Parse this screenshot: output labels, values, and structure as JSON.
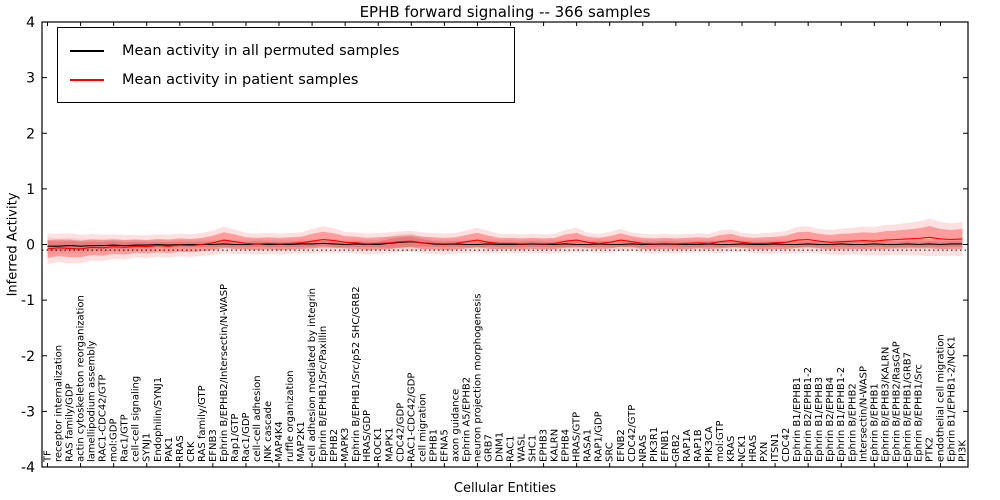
{
  "chart_data": {
    "type": "line",
    "title": "EPHB forward signaling -- 366 samples",
    "xlabel": "Cellular Entities",
    "ylabel": "Inferred Activity",
    "ylim": [
      -4,
      4
    ],
    "yticks": [
      -4,
      -3,
      -2,
      -1,
      0,
      1,
      2,
      3,
      4
    ],
    "grid": false,
    "legend_position": "upper left",
    "reference_line": -0.1,
    "categories": [
      "TF",
      "receptor internalization",
      "RAS family/GDP",
      "actin cytoskeleton reorganization",
      "lamellipodium assembly",
      "RAC1-CDC42/GTP",
      "mol:GDP",
      "Rac1/GTP",
      "cell-cell signaling",
      "SYNJ1",
      "Endophilin/SYNJ1",
      "PAK1",
      "RRAS",
      "CRK",
      "RAS family/GTP",
      "EFNB3",
      "Ephrin B/EPHB2/Intersectin/N-WASP",
      "Rap1/GTP",
      "Rac1/GDP",
      "cell-cell adhesion",
      "JNK cascade",
      "MAP4K4",
      "ruffle organization",
      "MAP2K1",
      "cell adhesion mediated by integrin",
      "Ephrin B/EPHB1/Src/Paxillin",
      "EPHB2",
      "MAPK3",
      "Ephrin B/EPHB1/Src/p52 SHC/GRB2",
      "HRAS/GDP",
      "ROCK1",
      "MAPK1",
      "CDC42/GDP",
      "RAC1-CDC42/GDP",
      "cell migration",
      "EPHB1",
      "EFNA5",
      "axon guidance",
      "Ephrin A5/EPHB2",
      "neuron projection morphogenesis",
      "GRB7",
      "DNM1",
      "RAC1",
      "WASL",
      "SHC1",
      "EPHB3",
      "KALRN",
      "EPHB4",
      "HRAS/GTP",
      "RASA1",
      "RAP1/GDP",
      "SRC",
      "EFNB2",
      "CDC42/GTP",
      "NRAS",
      "PIK3R1",
      "EFNB1",
      "GRB2",
      "RAP1A",
      "RAP1B",
      "PIK3CA",
      "mol:GTP",
      "KRAS",
      "NCK1",
      "HRAS",
      "PXN",
      "ITSN1",
      "CDC42",
      "Ephrin B1/EPHB1",
      "Ephrin B2/EPHB1-2",
      "Ephrin B1/EPHB3",
      "Ephrin B2/EPHB4",
      "Ephrin B1/EPHB1-2",
      "Ephrin B/EPHB2",
      "Intersectin/N-WASP",
      "Ephrin B/EPHB1",
      "Ephrin B/EPHB3/KALRN",
      "Ephrin B/EPHB2/RasGAP",
      "Ephrin B/EPHB1/GRB7",
      "Ephrin B/EPHB1/Src",
      "PTK2",
      "endothelial cell migration",
      "Ephrin B1/EPHB1-2/NCK1",
      "PI3K"
    ],
    "series": [
      {
        "name": "Mean activity in all permuted samples",
        "color": "#000000",
        "band_color": "#888888",
        "values": [
          -0.03,
          -0.03,
          -0.02,
          -0.03,
          -0.02,
          -0.02,
          -0.01,
          -0.02,
          -0.01,
          -0.01,
          0,
          -0.01,
          0,
          0,
          0,
          0,
          0.01,
          0,
          0,
          0.01,
          0,
          0,
          0,
          0.01,
          0.01,
          0.02,
          0.01,
          0,
          0.01,
          0,
          0,
          0.02,
          0.04,
          0.05,
          0.03,
          0.01,
          0,
          0.01,
          0,
          0,
          0.01,
          0,
          0,
          0,
          0.01,
          0,
          0,
          0.01,
          0,
          0,
          0.01,
          0,
          0,
          0.01,
          0,
          0,
          0.01,
          0,
          0,
          0,
          0.01,
          0,
          0,
          0.01,
          0,
          0,
          0.01,
          0,
          0,
          0.01,
          0,
          0,
          0.01,
          0,
          0,
          0.01,
          0,
          0,
          0.01,
          0,
          0.01,
          0,
          0.01,
          0.01
        ],
        "band": [
          0.09,
          0.08,
          0.08,
          0.08,
          0.07,
          0.07,
          0.07,
          0.06,
          0.06,
          0.05,
          0.05,
          0.05,
          0.05,
          0.05,
          0.05,
          0.05,
          0.05,
          0.05,
          0.05,
          0.05,
          0.05,
          0.05,
          0.05,
          0.05,
          0.05,
          0.05,
          0.05,
          0.05,
          0.05,
          0.05,
          0.05,
          0.08,
          0.09,
          0.09,
          0.07,
          0.05,
          0.05,
          0.05,
          0.05,
          0.05,
          0.05,
          0.05,
          0.05,
          0.05,
          0.05,
          0.05,
          0.05,
          0.05,
          0.05,
          0.05,
          0.05,
          0.05,
          0.05,
          0.05,
          0.05,
          0.05,
          0.05,
          0.05,
          0.05,
          0.05,
          0.05,
          0.05,
          0.05,
          0.05,
          0.05,
          0.05,
          0.05,
          0.05,
          0.05,
          0.05,
          0.05,
          0.05,
          0.05,
          0.05,
          0.05,
          0.05,
          0.05,
          0.05,
          0.05,
          0.05,
          0.05,
          0.05,
          0.05,
          0.05
        ]
      },
      {
        "name": "Mean activity in patient samples",
        "color": "#ff0000",
        "band_color": "#ff0000",
        "values": [
          -0.08,
          -0.06,
          -0.07,
          -0.08,
          -0.05,
          -0.06,
          -0.04,
          -0.05,
          -0.03,
          -0.04,
          -0.02,
          -0.03,
          -0.01,
          -0.02,
          0,
          0.03,
          0.08,
          0.05,
          0.02,
          0.01,
          0.02,
          0.01,
          0.02,
          0.03,
          0.06,
          0.09,
          0.07,
          0.04,
          0.03,
          0.01,
          0.02,
          0.03,
          0.05,
          0.06,
          0.03,
          0.02,
          0.01,
          0.02,
          0.05,
          0.08,
          0.04,
          0.02,
          0.02,
          0.01,
          0.02,
          0.01,
          0.02,
          0.06,
          0.08,
          0.04,
          0.02,
          0.04,
          0.08,
          0.05,
          0.02,
          0.01,
          0.02,
          0.01,
          0.02,
          0.03,
          0.02,
          0.05,
          0.07,
          0.04,
          0.02,
          0.02,
          0.03,
          0.04,
          0.08,
          0.09,
          0.06,
          0.04,
          0.05,
          0.06,
          0.07,
          0.06,
          0.08,
          0.09,
          0.1,
          0.11,
          0.13,
          0.1,
          0.09,
          0.1
        ],
        "band": [
          0.16,
          0.15,
          0.16,
          0.15,
          0.14,
          0.14,
          0.13,
          0.13,
          0.12,
          0.12,
          0.12,
          0.12,
          0.12,
          0.12,
          0.12,
          0.13,
          0.14,
          0.13,
          0.11,
          0.11,
          0.11,
          0.11,
          0.11,
          0.11,
          0.13,
          0.14,
          0.13,
          0.11,
          0.11,
          0.11,
          0.11,
          0.11,
          0.11,
          0.11,
          0.11,
          0.11,
          0.11,
          0.11,
          0.12,
          0.13,
          0.12,
          0.1,
          0.1,
          0.1,
          0.1,
          0.1,
          0.1,
          0.12,
          0.13,
          0.1,
          0.1,
          0.11,
          0.12,
          0.1,
          0.1,
          0.1,
          0.1,
          0.1,
          0.1,
          0.1,
          0.1,
          0.12,
          0.12,
          0.1,
          0.1,
          0.11,
          0.11,
          0.12,
          0.14,
          0.14,
          0.13,
          0.13,
          0.14,
          0.14,
          0.15,
          0.15,
          0.16,
          0.16,
          0.17,
          0.18,
          0.2,
          0.18,
          0.17,
          0.18
        ]
      }
    ]
  }
}
